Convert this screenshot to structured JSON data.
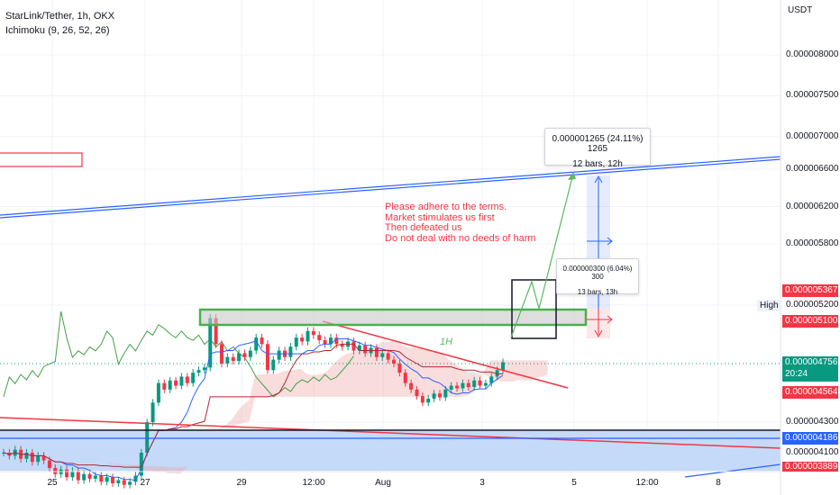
{
  "header": {
    "symbol_line": "StarLink/Tether, 1h, OKX",
    "indicator_line": "Ichimoku (9, 26, 52, 26)"
  },
  "colors": {
    "bullish": "#089981",
    "bearish": "#f23645",
    "tenkan": "#2962ff",
    "kijun": "#b22833",
    "chikou": "#43a047",
    "cloud_bull": "#a5d6a7",
    "cloud_bear": "#ef9a9a",
    "trendline_blue": "#2962ff",
    "trendline_red": "#f23645",
    "range_green": "#4caf50"
  },
  "chart_data": {
    "type": "candlestick",
    "title": "StarLink/Tether, 1h, OKX",
    "indicator": "Ichimoku (9, 26, 52, 26)",
    "price_axis": {
      "unit": "USDT",
      "ticks": [
        "0.000008000",
        "0.000007500",
        "0.000007000",
        "0.000006600",
        "0.000006200",
        "0.000005800",
        "0.000005200",
        "0.000004300",
        "0.000004100"
      ],
      "ylim": [
        3.8e-06,
        8.5e-06
      ]
    },
    "time_axis": {
      "ticks": [
        "25",
        "27",
        "29",
        "12:00",
        "Aug",
        "3",
        "5",
        "12:00",
        "8"
      ]
    },
    "price_tags": [
      {
        "value": "0.000005367",
        "style": "red"
      },
      {
        "value": "0.000005100",
        "style": "red"
      },
      {
        "value": "0.000004756",
        "sub": "20:24",
        "style": "green"
      },
      {
        "value": "0.000004564",
        "style": "red"
      },
      {
        "value": "0.000004186",
        "style": "blue"
      },
      {
        "value": "0.000003889",
        "style": "red"
      }
    ],
    "high_label": "High",
    "annotations": {
      "note_lines": [
        "Please adhere to the terms.",
        "Market stimulates us first",
        "Then defeated us",
        "Do not deal with no deeds of harm"
      ],
      "label_1h": "1H",
      "measure_large": {
        "line1": "0.000001265 (24.11%) 1265",
        "line2": "12 bars, 12h"
      },
      "measure_small": {
        "line1": "0.000000300 (6.04%) 300",
        "line2": "13 bars, 13h"
      }
    },
    "candles_close": [
      4.1e-06,
      4.08e-06,
      4.12e-06,
      4.06e-06,
      4.1e-06,
      4.04e-06,
      4.08e-06,
      4.05e-06,
      4e-06,
      3.96e-06,
      3.99e-06,
      3.94e-06,
      3.98e-06,
      3.92e-06,
      3.96e-06,
      3.93e-06,
      3.95e-06,
      3.91e-06,
      3.94e-06,
      3.9e-06,
      3.92e-06,
      3.89e-06,
      3.91e-06,
      3.95e-06,
      4.1e-06,
      4.3e-06,
      4.45e-06,
      4.6e-06,
      4.55e-06,
      4.62e-06,
      4.58e-06,
      4.65e-06,
      4.6e-06,
      4.68e-06,
      4.7e-06,
      4.72e-06,
      5.1e-06,
      4.9e-06,
      4.75e-06,
      4.8e-06,
      4.77e-06,
      4.83e-06,
      4.8e-06,
      4.85e-06,
      4.95e-06,
      4.9e-06,
      4.7e-06,
      4.78e-06,
      4.85e-06,
      4.8e-06,
      4.88e-06,
      4.95e-06,
      4.92e-06,
      5e-06,
      4.97e-06,
      4.93e-06,
      4.9e-06,
      4.95e-06,
      4.9e-06,
      4.88e-06,
      4.92e-06,
      4.85e-06,
      4.89e-06,
      4.83e-06,
      4.87e-06,
      4.8e-06,
      4.83e-06,
      4.78e-06,
      4.75e-06,
      4.68e-06,
      4.6e-06,
      4.55e-06,
      4.5e-06,
      4.45e-06,
      4.48e-06,
      4.52e-06,
      4.49e-06,
      4.55e-06,
      4.58e-06,
      4.56e-06,
      4.6e-06,
      4.57e-06,
      4.62e-06,
      4.58e-06,
      4.6e-06,
      4.65e-06,
      4.7e-06,
      4.76e-06
    ]
  }
}
